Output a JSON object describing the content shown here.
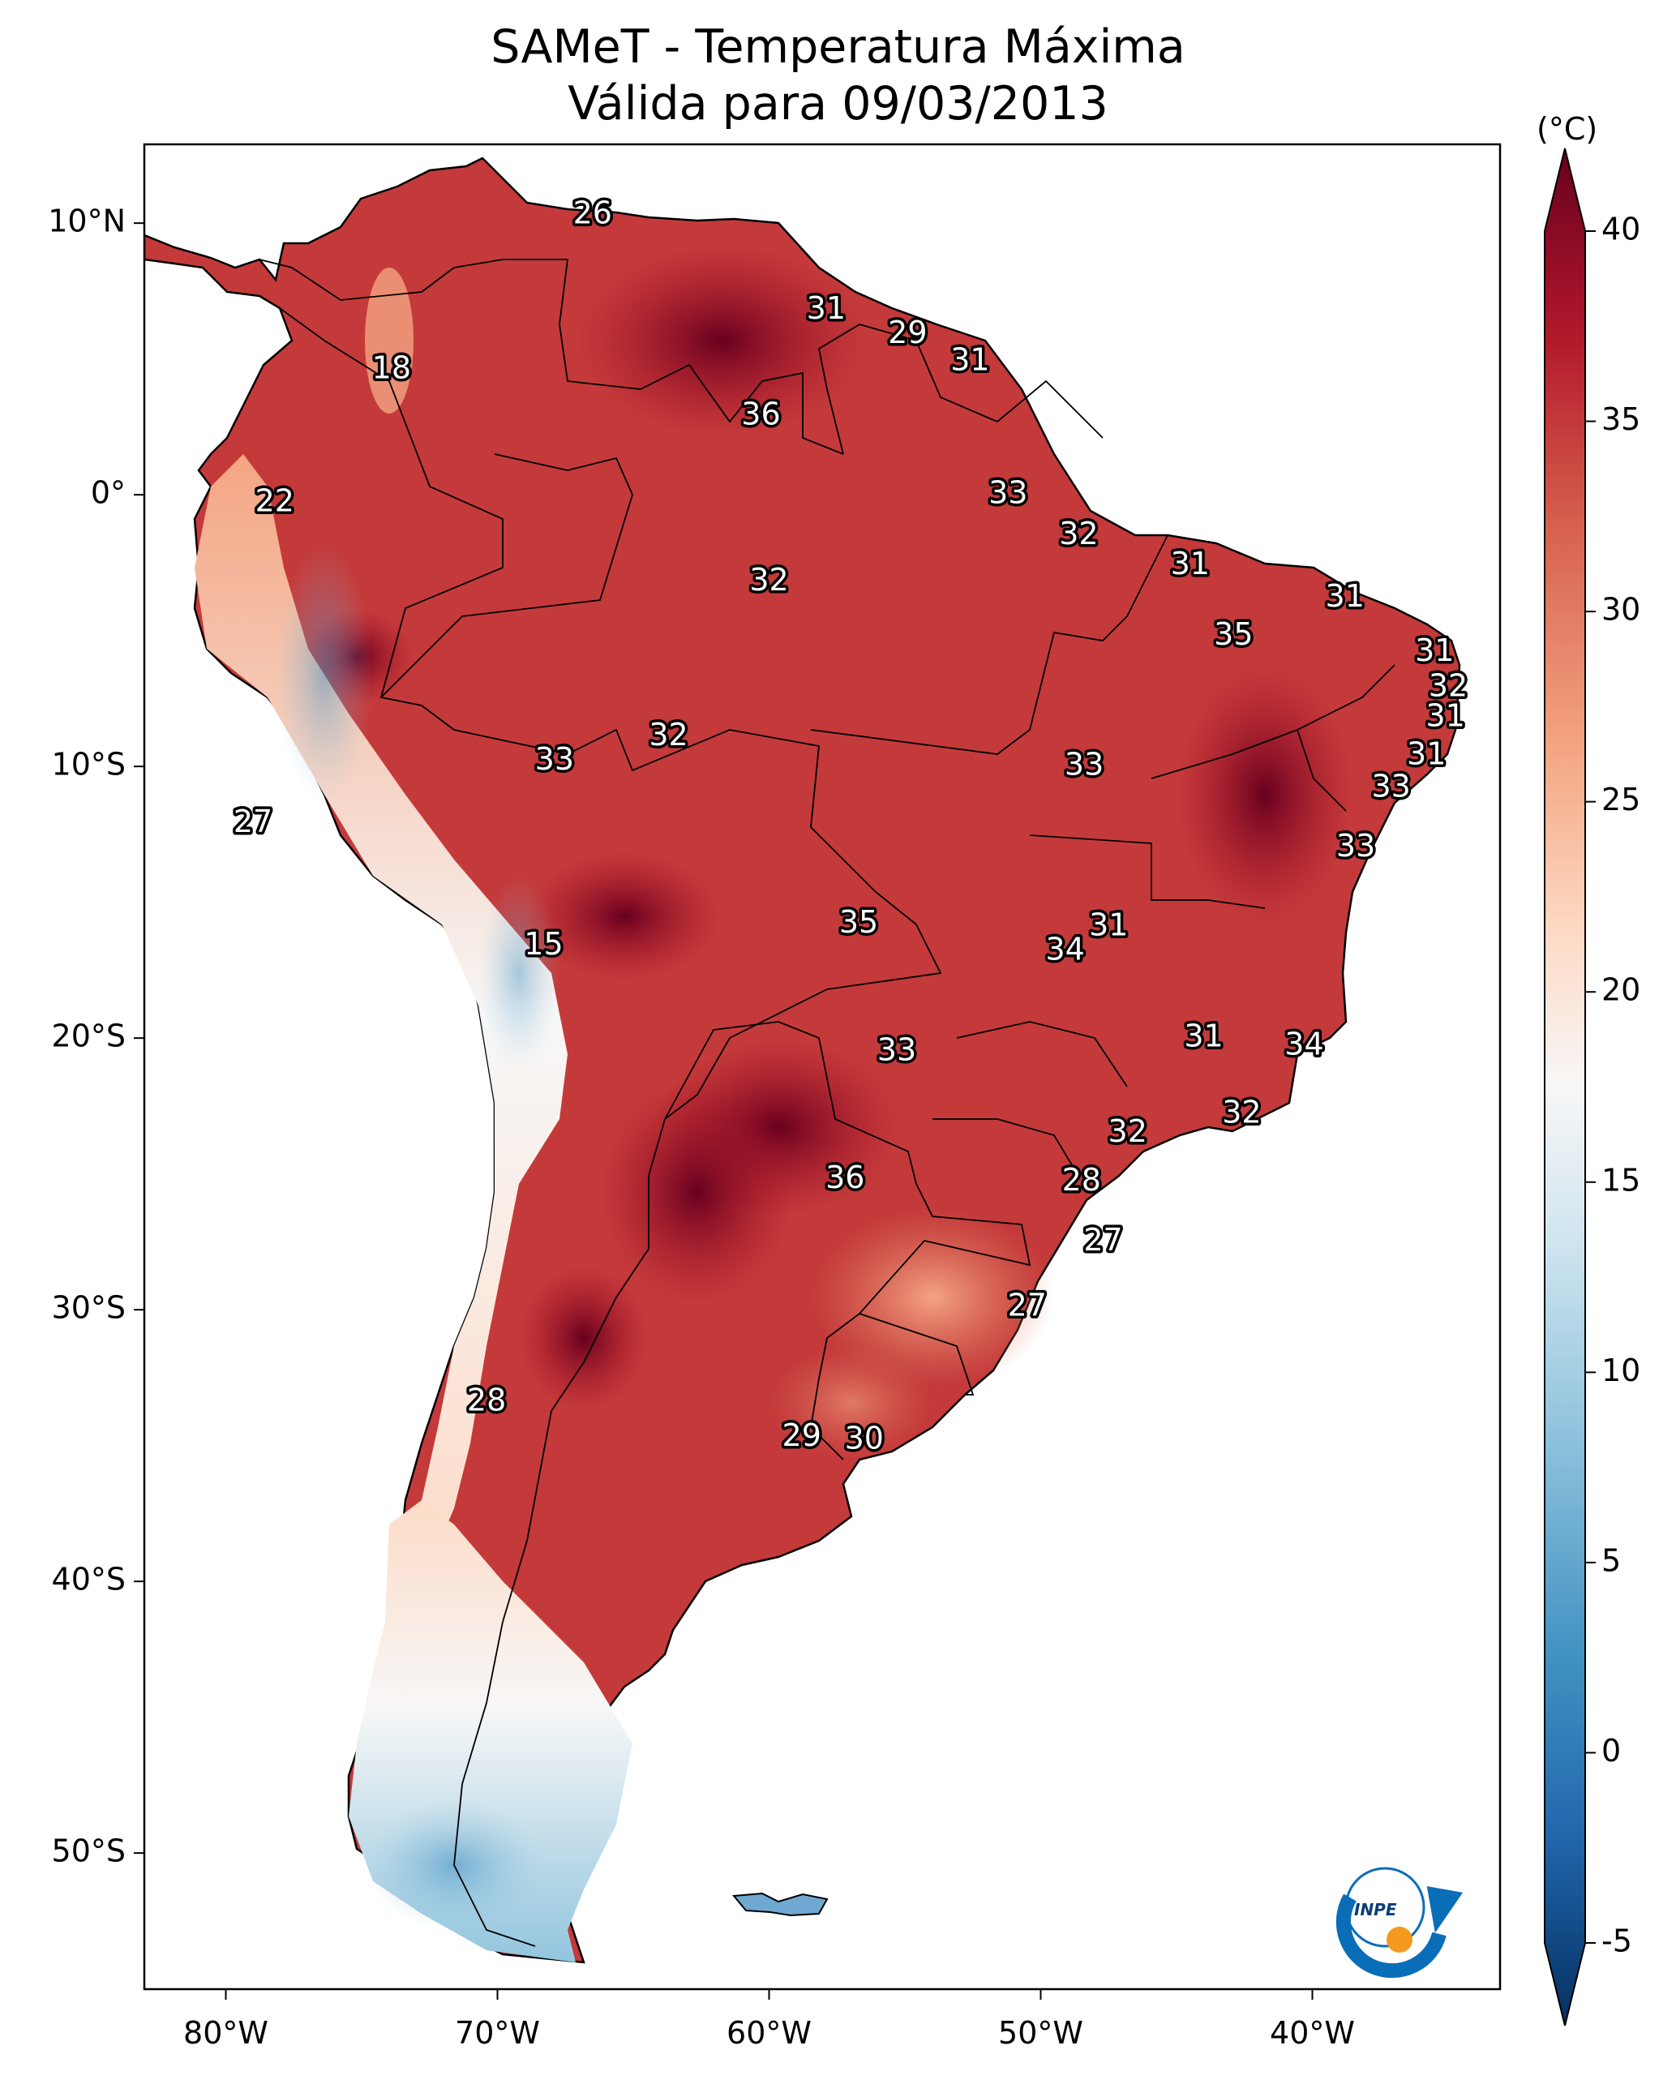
{
  "title": {
    "line1": "SAMeT - Temperatura Máxima",
    "line2": "Válida para 09/03/2013"
  },
  "map": {
    "lon_ticks": [
      "80°W",
      "70°W",
      "60°W",
      "50°W",
      "40°W"
    ],
    "lat_ticks": [
      "10°N",
      "0°",
      "10°S",
      "20°S",
      "30°S",
      "40°S",
      "50°S"
    ],
    "labels": [
      {
        "text": "26",
        "lon": -66.5,
        "lat": 10.3
      },
      {
        "text": "18",
        "lon": -73.9,
        "lat": 4.6
      },
      {
        "text": "22",
        "lon": -78.2,
        "lat": -0.3
      },
      {
        "text": "31",
        "lon": -57.9,
        "lat": 6.8
      },
      {
        "text": "29",
        "lon": -54.9,
        "lat": 5.9
      },
      {
        "text": "31",
        "lon": -52.6,
        "lat": 4.9
      },
      {
        "text": "36",
        "lon": -60.3,
        "lat": 2.9
      },
      {
        "text": "33",
        "lon": -51.2,
        "lat": 0.0
      },
      {
        "text": "32",
        "lon": -48.6,
        "lat": -1.5
      },
      {
        "text": "31",
        "lon": -44.5,
        "lat": -2.6
      },
      {
        "text": "32",
        "lon": -60.0,
        "lat": -3.2
      },
      {
        "text": "31",
        "lon": -38.8,
        "lat": -3.8
      },
      {
        "text": "35",
        "lon": -42.9,
        "lat": -5.2
      },
      {
        "text": "31",
        "lon": -35.5,
        "lat": -5.8
      },
      {
        "text": "32",
        "lon": -35.0,
        "lat": -7.1
      },
      {
        "text": "31",
        "lon": -35.1,
        "lat": -8.2
      },
      {
        "text": "32",
        "lon": -63.7,
        "lat": -8.9
      },
      {
        "text": "33",
        "lon": -67.9,
        "lat": -9.8
      },
      {
        "text": "31",
        "lon": -35.8,
        "lat": -9.6
      },
      {
        "text": "33",
        "lon": -48.4,
        "lat": -10.0
      },
      {
        "text": "33",
        "lon": -37.1,
        "lat": -10.8
      },
      {
        "text": "27",
        "lon": -79.0,
        "lat": -12.1
      },
      {
        "text": "33",
        "lon": -38.4,
        "lat": -13.0
      },
      {
        "text": "35",
        "lon": -56.7,
        "lat": -15.8
      },
      {
        "text": "31",
        "lon": -47.5,
        "lat": -15.9
      },
      {
        "text": "15",
        "lon": -68.3,
        "lat": -16.6
      },
      {
        "text": "34",
        "lon": -49.1,
        "lat": -16.8
      },
      {
        "text": "31",
        "lon": -44.0,
        "lat": -20.0
      },
      {
        "text": "33",
        "lon": -55.3,
        "lat": -20.5
      },
      {
        "text": "34",
        "lon": -40.3,
        "lat": -20.3
      },
      {
        "text": "32",
        "lon": -42.6,
        "lat": -22.8
      },
      {
        "text": "32",
        "lon": -46.8,
        "lat": -23.5
      },
      {
        "text": "36",
        "lon": -57.2,
        "lat": -25.2
      },
      {
        "text": "28",
        "lon": -48.5,
        "lat": -25.3
      },
      {
        "text": "27",
        "lon": -47.7,
        "lat": -27.5
      },
      {
        "text": "27",
        "lon": -50.5,
        "lat": -29.9
      },
      {
        "text": "28",
        "lon": -70.4,
        "lat": -33.4
      },
      {
        "text": "29",
        "lon": -58.8,
        "lat": -34.7
      },
      {
        "text": "30",
        "lon": -56.5,
        "lat": -34.8
      }
    ]
  },
  "colorbar": {
    "unit": "(°C)",
    "ticks": [
      "40",
      "35",
      "30",
      "25",
      "20",
      "15",
      "10",
      "5",
      "0",
      "-5"
    ],
    "colors": [
      "#67001f",
      "#b2182b",
      "#d6604d",
      "#f4a582",
      "#fddbc7",
      "#f7f7f7",
      "#d1e5f0",
      "#92c5de",
      "#4393c3",
      "#2166ac",
      "#053061"
    ]
  },
  "logo": {
    "text": "INPE"
  }
}
